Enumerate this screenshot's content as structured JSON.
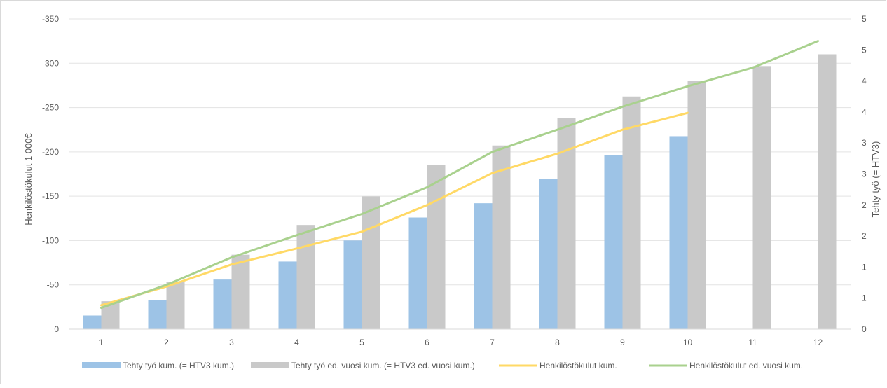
{
  "chart_data": {
    "type": "bar",
    "categories": [
      "1",
      "2",
      "3",
      "4",
      "5",
      "6",
      "7",
      "8",
      "9",
      "10",
      "11",
      "12"
    ],
    "y_left": {
      "label": "Henkilöstökulut 1 000€",
      "ticks": [
        "0",
        "-50",
        "-100",
        "-150",
        "-200",
        "-250",
        "-300",
        "-350"
      ],
      "range": [
        0,
        350
      ]
    },
    "y_right": {
      "label": "Tehty työ (= HTV3)",
      "ticks": [
        "0",
        "1",
        "1",
        "2",
        "2",
        "3",
        "3",
        "4",
        "4",
        "5",
        "5"
      ],
      "range": [
        0,
        5
      ]
    },
    "bar_series": [
      {
        "name": "Tehty työ kum. (= HTV3 kum.)",
        "color": "#9dc3e6",
        "axis": "right",
        "values": [
          0.22,
          0.47,
          0.8,
          1.09,
          1.43,
          1.8,
          2.03,
          2.42,
          2.81,
          3.11,
          null,
          null
        ]
      },
      {
        "name": "Tehty työ ed. vuosi kum. (= HTV3 ed. vuosi kum.)",
        "color": "#c9c9c9",
        "axis": "right",
        "values": [
          0.45,
          0.76,
          1.2,
          1.68,
          2.14,
          2.65,
          2.96,
          3.4,
          3.75,
          4.0,
          4.24,
          4.43
        ]
      }
    ],
    "line_series": [
      {
        "name": "Henkilöstökulut kum.",
        "color": "#ffd966",
        "axis": "left",
        "values": [
          -27,
          -48,
          -73,
          -91,
          -110,
          -140,
          -176,
          -198,
          -225,
          -244,
          null,
          null
        ]
      },
      {
        "name": "Henkilöstökulut ed. vuosi kum.",
        "color": "#a9d18e",
        "axis": "left",
        "values": [
          -24,
          -50,
          -81,
          -106,
          -130,
          -160,
          -200,
          -225,
          -251,
          -274,
          -295,
          -325
        ]
      }
    ],
    "legend": "bottom",
    "grid": true
  }
}
